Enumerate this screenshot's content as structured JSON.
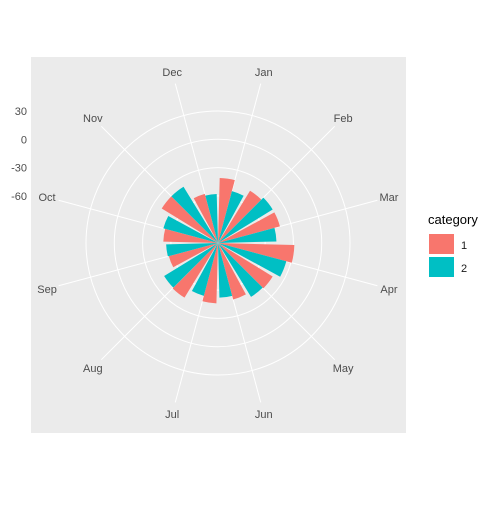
{
  "chart_data": {
    "type": "bar",
    "coord": "polar",
    "categories": [
      "Jan",
      "Feb",
      "Mar",
      "Apr",
      "May",
      "Jun",
      "Jul",
      "Aug",
      "Sep",
      "Oct",
      "Nov",
      "Dec"
    ],
    "series": [
      {
        "name": "1",
        "values": [
          -41,
          -45,
          -42,
          -29,
          -42,
          -48,
          -46,
          -42,
          -56,
          -52,
          -40,
          -56
        ],
        "color": "#F8766D"
      },
      {
        "name": "2",
        "values": [
          -53,
          -42,
          -48,
          -35,
          -43,
          -52,
          -52,
          -43,
          -55,
          -50,
          -40,
          -58
        ],
        "color": "#00BFC4"
      }
    ],
    "y_axis": {
      "ticks": [
        30,
        0,
        -30,
        -60
      ],
      "tick_labels": [
        "30",
        "0",
        "-30",
        "-60"
      ],
      "range": [
        -110,
        65
      ]
    },
    "grid": true,
    "legend": {
      "title": "category",
      "position": "right",
      "entries": [
        "1",
        "2"
      ]
    },
    "title": "",
    "xlabel": "",
    "ylabel": ""
  }
}
